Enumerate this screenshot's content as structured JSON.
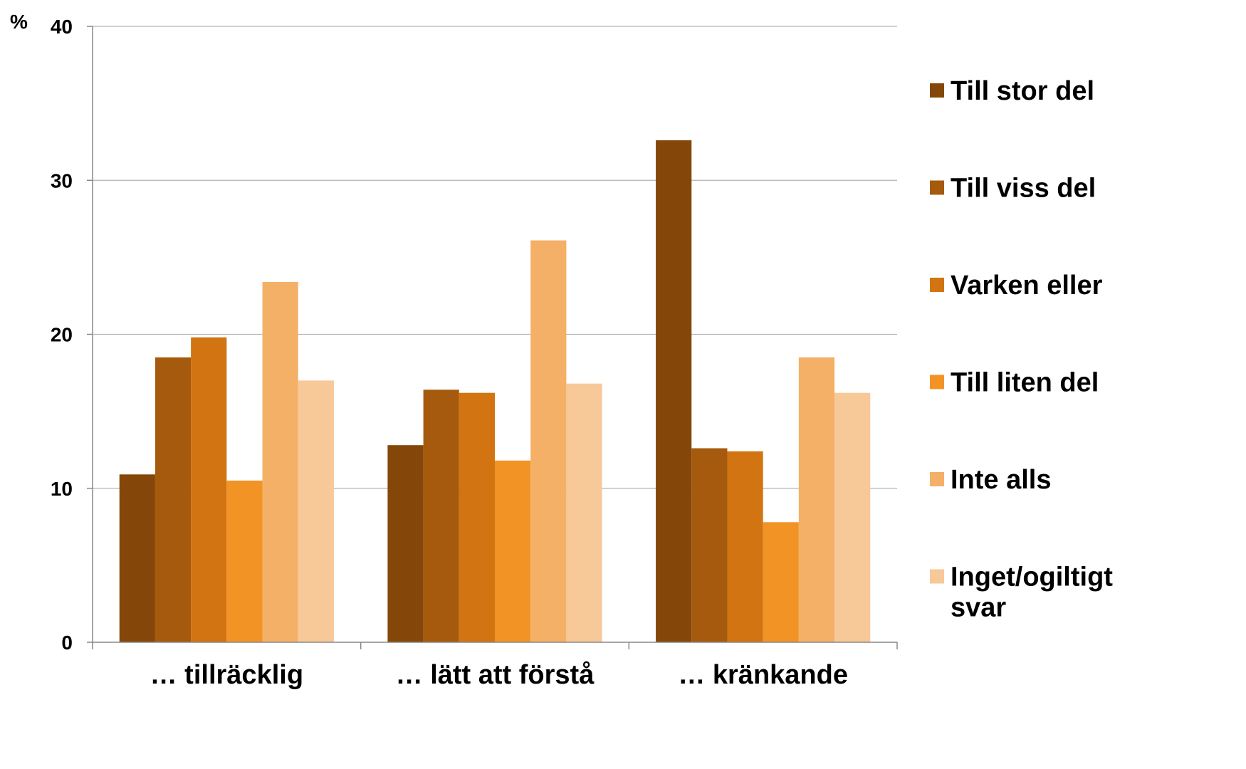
{
  "chart_data": {
    "type": "bar",
    "ylabel": "%",
    "ylim": [
      0,
      40
    ],
    "yticks": [
      "0",
      "10",
      "20",
      "30",
      "40"
    ],
    "grid": true,
    "legend_position": "right",
    "categories": [
      "… tillräcklig",
      "… lätt att förstå",
      "… kränkande"
    ],
    "series": [
      {
        "name": "Till stor del",
        "color": "#844709",
        "values": [
          10.9,
          12.8,
          32.6
        ]
      },
      {
        "name": "Till viss del",
        "color": "#A65A0D",
        "values": [
          18.5,
          16.4,
          12.6
        ]
      },
      {
        "name": "Varken eller",
        "color": "#D17411",
        "values": [
          19.8,
          16.2,
          12.4
        ]
      },
      {
        "name": "Till liten del",
        "color": "#F29326",
        "values": [
          10.5,
          11.8,
          7.8
        ]
      },
      {
        "name": "Inte alls",
        "color": "#F4B066",
        "values": [
          23.4,
          26.1,
          18.5
        ]
      },
      {
        "name": "Inget/ogiltigt svar",
        "legend_lines": [
          "Inget/ogiltigt",
          "svar"
        ],
        "color": "#F7C898",
        "values": [
          17.0,
          16.8,
          16.2
        ]
      }
    ]
  }
}
